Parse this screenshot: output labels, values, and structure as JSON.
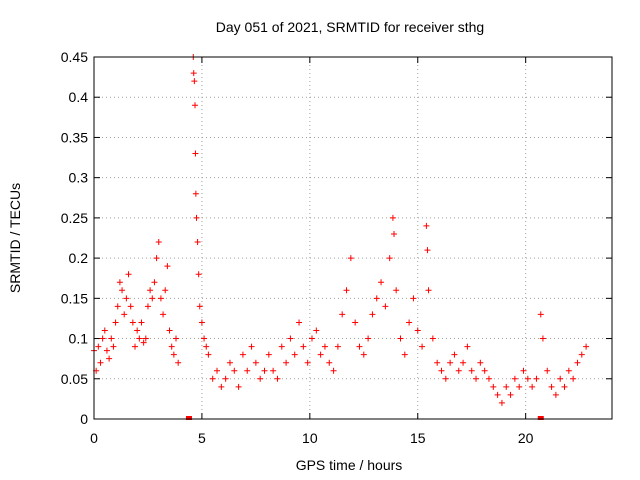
{
  "chart_data": {
    "type": "scatter",
    "title": "Day 051 of 2021, SRMTID for receiver sthg",
    "xlabel": "GPS time / hours",
    "ylabel": "SRMTID / TECUs",
    "xlim": [
      0,
      24
    ],
    "ylim": [
      0,
      0.45
    ],
    "xticks": [
      0,
      5,
      10,
      15,
      20
    ],
    "xtick_labels": [
      "0",
      "5",
      "10",
      "15",
      "20"
    ],
    "yticks": [
      0,
      0.05,
      0.1,
      0.15,
      0.2,
      0.25,
      0.3,
      0.35,
      0.4,
      0.45
    ],
    "ytick_labels": [
      "0",
      "0.05",
      "0.1",
      "0.15",
      "0.2",
      "0.25",
      "0.3",
      "0.35",
      "0.4",
      "0.45"
    ],
    "grid": true,
    "marker": "+",
    "color": "#ff0000",
    "series": [
      {
        "name": "SRMTID",
        "points": [
          [
            0.0,
            0.085
          ],
          [
            0.1,
            0.06
          ],
          [
            0.2,
            0.09
          ],
          [
            0.3,
            0.07
          ],
          [
            0.4,
            0.1
          ],
          [
            0.5,
            0.11
          ],
          [
            0.6,
            0.085
          ],
          [
            0.7,
            0.075
          ],
          [
            0.8,
            0.1
          ],
          [
            0.9,
            0.09
          ],
          [
            1.0,
            0.12
          ],
          [
            1.1,
            0.14
          ],
          [
            1.2,
            0.17
          ],
          [
            1.3,
            0.16
          ],
          [
            1.4,
            0.13
          ],
          [
            1.5,
            0.15
          ],
          [
            1.6,
            0.18
          ],
          [
            1.7,
            0.14
          ],
          [
            1.8,
            0.12
          ],
          [
            1.9,
            0.09
          ],
          [
            2.0,
            0.11
          ],
          [
            2.1,
            0.1
          ],
          [
            2.2,
            0.12
          ],
          [
            2.3,
            0.095
          ],
          [
            2.4,
            0.1
          ],
          [
            2.5,
            0.14
          ],
          [
            2.6,
            0.16
          ],
          [
            2.7,
            0.15
          ],
          [
            2.8,
            0.17
          ],
          [
            2.9,
            0.2
          ],
          [
            3.0,
            0.22
          ],
          [
            3.1,
            0.15
          ],
          [
            3.2,
            0.13
          ],
          [
            3.3,
            0.16
          ],
          [
            3.4,
            0.19
          ],
          [
            3.5,
            0.11
          ],
          [
            3.6,
            0.09
          ],
          [
            3.7,
            0.08
          ],
          [
            3.8,
            0.1
          ],
          [
            3.9,
            0.07
          ],
          [
            4.6,
            0.45
          ],
          [
            4.62,
            0.43
          ],
          [
            4.65,
            0.42
          ],
          [
            4.68,
            0.39
          ],
          [
            4.7,
            0.33
          ],
          [
            4.72,
            0.28
          ],
          [
            4.75,
            0.25
          ],
          [
            4.8,
            0.22
          ],
          [
            4.85,
            0.18
          ],
          [
            4.9,
            0.14
          ],
          [
            5.0,
            0.12
          ],
          [
            5.1,
            0.1
          ],
          [
            5.2,
            0.09
          ],
          [
            5.3,
            0.08
          ],
          [
            5.5,
            0.05
          ],
          [
            5.7,
            0.06
          ],
          [
            5.9,
            0.04
          ],
          [
            6.1,
            0.05
          ],
          [
            6.3,
            0.07
          ],
          [
            6.5,
            0.06
          ],
          [
            6.7,
            0.04
          ],
          [
            6.9,
            0.08
          ],
          [
            7.1,
            0.06
          ],
          [
            7.3,
            0.09
          ],
          [
            7.5,
            0.07
          ],
          [
            7.7,
            0.05
          ],
          [
            7.9,
            0.06
          ],
          [
            8.1,
            0.08
          ],
          [
            8.3,
            0.06
          ],
          [
            8.5,
            0.05
          ],
          [
            8.7,
            0.09
          ],
          [
            8.9,
            0.07
          ],
          [
            9.1,
            0.1
          ],
          [
            9.3,
            0.08
          ],
          [
            9.5,
            0.12
          ],
          [
            9.7,
            0.09
          ],
          [
            9.9,
            0.07
          ],
          [
            10.1,
            0.1
          ],
          [
            10.3,
            0.11
          ],
          [
            10.5,
            0.08
          ],
          [
            10.7,
            0.09
          ],
          [
            10.9,
            0.07
          ],
          [
            11.1,
            0.06
          ],
          [
            11.3,
            0.09
          ],
          [
            11.5,
            0.13
          ],
          [
            11.7,
            0.16
          ],
          [
            11.9,
            0.2
          ],
          [
            12.1,
            0.12
          ],
          [
            12.3,
            0.09
          ],
          [
            12.5,
            0.08
          ],
          [
            12.7,
            0.1
          ],
          [
            12.9,
            0.13
          ],
          [
            13.1,
            0.15
          ],
          [
            13.3,
            0.17
          ],
          [
            13.5,
            0.14
          ],
          [
            13.7,
            0.2
          ],
          [
            13.85,
            0.25
          ],
          [
            13.9,
            0.23
          ],
          [
            14.0,
            0.16
          ],
          [
            14.2,
            0.1
          ],
          [
            14.4,
            0.08
          ],
          [
            14.6,
            0.12
          ],
          [
            14.8,
            0.15
          ],
          [
            15.0,
            0.11
          ],
          [
            15.2,
            0.09
          ],
          [
            15.4,
            0.24
          ],
          [
            15.45,
            0.21
          ],
          [
            15.5,
            0.16
          ],
          [
            15.7,
            0.1
          ],
          [
            15.9,
            0.07
          ],
          [
            16.1,
            0.06
          ],
          [
            16.3,
            0.05
          ],
          [
            16.5,
            0.07
          ],
          [
            16.7,
            0.08
          ],
          [
            16.9,
            0.06
          ],
          [
            17.1,
            0.07
          ],
          [
            17.3,
            0.09
          ],
          [
            17.5,
            0.06
          ],
          [
            17.7,
            0.05
          ],
          [
            17.9,
            0.07
          ],
          [
            18.1,
            0.06
          ],
          [
            18.3,
            0.05
          ],
          [
            18.5,
            0.04
          ],
          [
            18.7,
            0.03
          ],
          [
            18.9,
            0.02
          ],
          [
            19.1,
            0.04
          ],
          [
            19.3,
            0.03
          ],
          [
            19.5,
            0.05
          ],
          [
            19.7,
            0.04
          ],
          [
            19.9,
            0.06
          ],
          [
            20.1,
            0.05
          ],
          [
            20.3,
            0.04
          ],
          [
            20.5,
            0.05
          ],
          [
            20.7,
            0.13
          ],
          [
            20.8,
            0.1
          ],
          [
            21.0,
            0.06
          ],
          [
            21.2,
            0.04
          ],
          [
            21.4,
            0.03
          ],
          [
            21.6,
            0.05
          ],
          [
            21.8,
            0.04
          ],
          [
            22.0,
            0.06
          ],
          [
            22.2,
            0.05
          ],
          [
            22.4,
            0.07
          ],
          [
            22.6,
            0.08
          ],
          [
            22.8,
            0.09
          ]
        ]
      }
    ],
    "markers_at_zero": [
      4.4,
      20.7
    ]
  }
}
